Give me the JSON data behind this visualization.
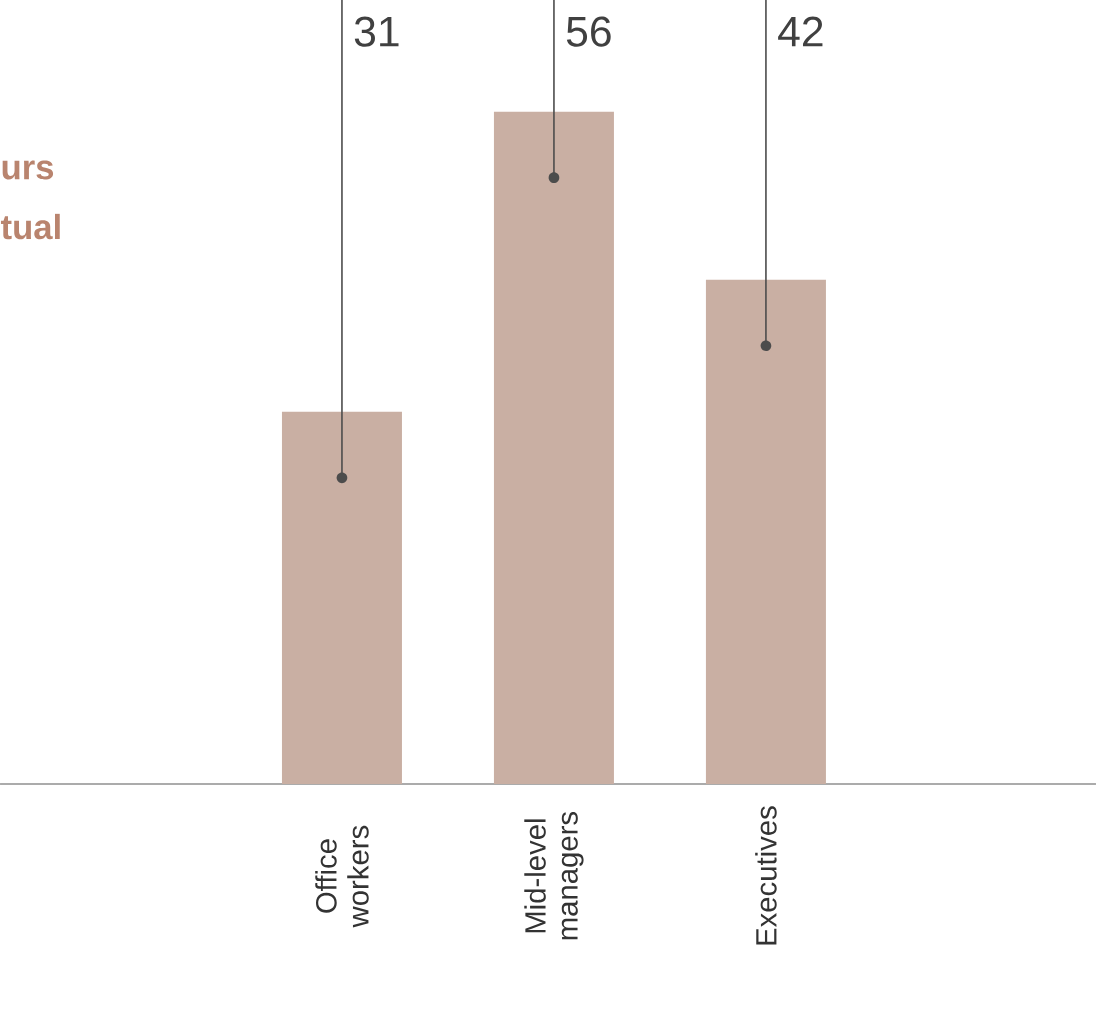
{
  "chart_data": {
    "type": "bar",
    "categories": [
      "Office workers",
      "Mid-level managers",
      "Executives"
    ],
    "values": [
      31,
      56,
      42
    ],
    "color": "#c9afa3",
    "data_labels": true,
    "annotations": [
      "urs",
      "tual"
    ]
  }
}
